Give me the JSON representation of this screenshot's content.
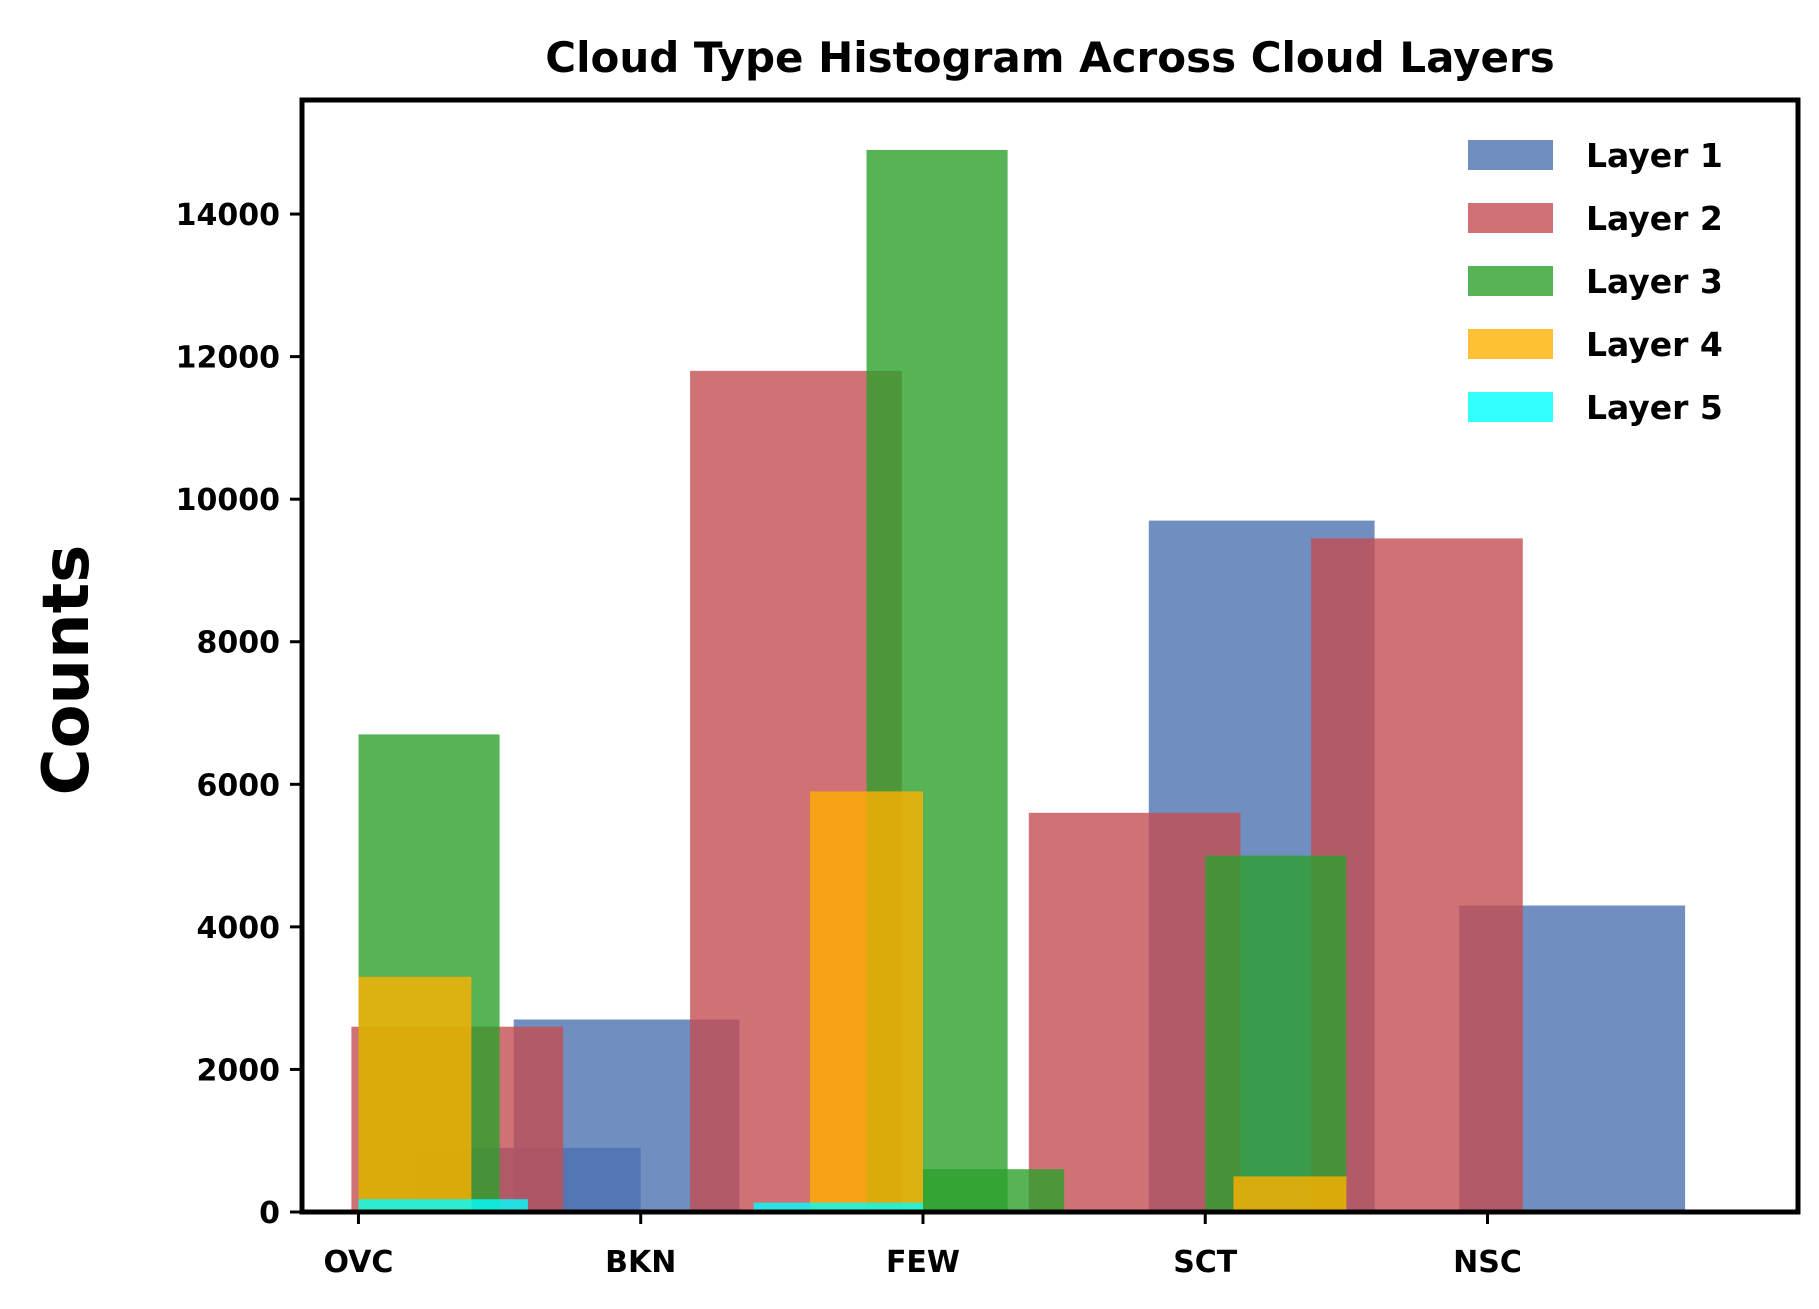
{
  "chart_data": {
    "type": "bar",
    "title": "Cloud Type Histogram Across Cloud Layers",
    "xlabel": "",
    "ylabel": "Counts",
    "categories": [
      "OVC",
      "BKN",
      "FEW",
      "SCT",
      "NSC"
    ],
    "ylim": [
      0,
      15600
    ],
    "yticks": [
      0,
      2000,
      4000,
      6000,
      8000,
      10000,
      12000,
      14000
    ],
    "legend_position": "top-right",
    "series": [
      {
        "name": "Layer 1",
        "color": "#4c72b0",
        "bars": [
          {
            "x": 0.6,
            "w": 0.8,
            "value": 900
          },
          {
            "x": 0.95,
            "w": 0.8,
            "value": 2700
          },
          {
            "x": 3.2,
            "w": 0.8,
            "value": 9700
          },
          {
            "x": 4.3,
            "w": 0.8,
            "value": 4300
          }
        ]
      },
      {
        "name": "Layer 2",
        "color": "#c44e52",
        "bars": [
          {
            "x": 0.35,
            "w": 0.75,
            "value": 2600
          },
          {
            "x": 1.55,
            "w": 0.75,
            "value": 11800
          },
          {
            "x": 2.75,
            "w": 0.75,
            "value": 5600
          },
          {
            "x": 3.75,
            "w": 0.75,
            "value": 9450
          }
        ]
      },
      {
        "name": "Layer 3",
        "color": "#2ca02c",
        "bars": [
          {
            "x": 0.25,
            "w": 0.5,
            "value": 6700
          },
          {
            "x": 2.05,
            "w": 0.5,
            "value": 14900
          },
          {
            "x": 2.25,
            "w": 0.5,
            "value": 600
          },
          {
            "x": 3.25,
            "w": 0.5,
            "value": 5000
          }
        ]
      },
      {
        "name": "Layer 4",
        "color": "#ffb000",
        "bars": [
          {
            "x": 0.2,
            "w": 0.4,
            "value": 3300
          },
          {
            "x": 1.8,
            "w": 0.4,
            "value": 5900
          },
          {
            "x": 3.3,
            "w": 0.4,
            "value": 500
          }
        ]
      },
      {
        "name": "Layer 5",
        "color": "#00ffff",
        "bars": [
          {
            "x": 0.3,
            "w": 0.6,
            "value": 180
          },
          {
            "x": 1.7,
            "w": 0.6,
            "value": 130
          }
        ]
      }
    ]
  }
}
